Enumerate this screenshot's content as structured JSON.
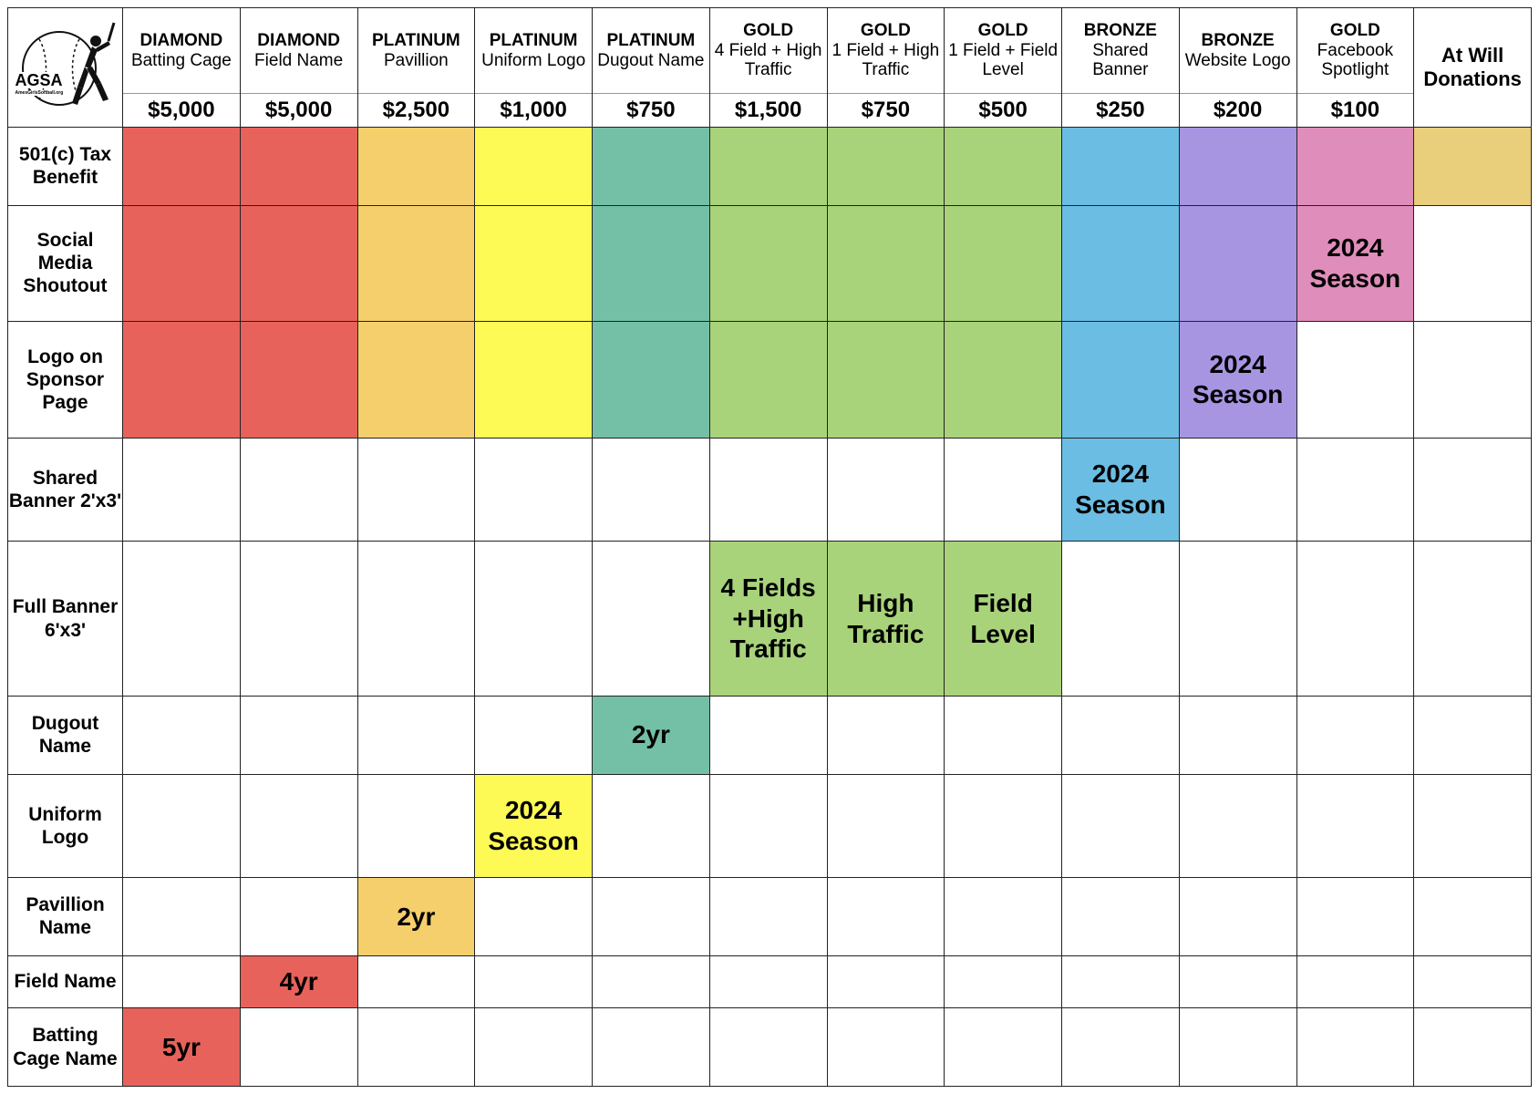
{
  "logo": {
    "text": "AGSA",
    "small_text": "AmesGirlsSoftball.org"
  },
  "columns": [
    {
      "tier": "DIAMOND",
      "name": "Batting Cage",
      "price": "$5,000",
      "color": "#e8625c"
    },
    {
      "tier": "DIAMOND",
      "name": "Field Name",
      "price": "$5,000",
      "color": "#e8625c"
    },
    {
      "tier": "PLATINUM",
      "name": "Pavillion",
      "price": "$2,500",
      "color": "#f5cf6b"
    },
    {
      "tier": "PLATINUM",
      "name": "Uniform Logo",
      "price": "$1,000",
      "color": "#fdf955"
    },
    {
      "tier": "PLATINUM",
      "name": "Dugout Name",
      "price": "$750",
      "color": "#74c0a7"
    },
    {
      "tier": "GOLD",
      "name": "4 Field + High Traffic",
      "price": "$1,500",
      "color": "#a8d37a"
    },
    {
      "tier": "GOLD",
      "name": "1 Field + High Traffic",
      "price": "$750",
      "color": "#a8d37a"
    },
    {
      "tier": "GOLD",
      "name": "1 Field + Field Level",
      "price": "$500",
      "color": "#a8d37a"
    },
    {
      "tier": "BRONZE",
      "name": "Shared Banner",
      "price": "$250",
      "color": "#6cbde3"
    },
    {
      "tier": "BRONZE",
      "name": "Website Logo",
      "price": "$200",
      "color": "#a895e2"
    },
    {
      "tier": "GOLD",
      "name": "Facebook Spotlight",
      "price": "$100",
      "color": "#df8dba"
    },
    {
      "tier": "",
      "name": "At Will Donations",
      "price": "",
      "color": "#e9ce7c",
      "simple": true
    }
  ],
  "rows": [
    {
      "label": "501(c) Tax Benefit",
      "cells": [
        {
          "fill": true
        },
        {
          "fill": true
        },
        {
          "fill": true
        },
        {
          "fill": true
        },
        {
          "fill": true
        },
        {
          "fill": true
        },
        {
          "fill": true
        },
        {
          "fill": true
        },
        {
          "fill": true
        },
        {
          "fill": true
        },
        {
          "fill": true
        },
        {
          "fill": true
        }
      ]
    },
    {
      "label": "Social Media Shoutout",
      "cells": [
        {
          "fill": true
        },
        {
          "fill": true
        },
        {
          "fill": true
        },
        {
          "fill": true
        },
        {
          "fill": true
        },
        {
          "fill": true
        },
        {
          "fill": true
        },
        {
          "fill": true
        },
        {
          "fill": true
        },
        {
          "fill": true
        },
        {
          "fill": true,
          "text": "2024 Season"
        },
        {
          "fill": false
        }
      ]
    },
    {
      "label": "Logo on Sponsor Page",
      "cells": [
        {
          "fill": true
        },
        {
          "fill": true
        },
        {
          "fill": true
        },
        {
          "fill": true
        },
        {
          "fill": true
        },
        {
          "fill": true
        },
        {
          "fill": true
        },
        {
          "fill": true
        },
        {
          "fill": true
        },
        {
          "fill": true,
          "text": "2024 Season"
        },
        {
          "fill": false
        },
        {
          "fill": false
        }
      ]
    },
    {
      "label": "Shared Banner 2'x3'",
      "cells": [
        {
          "fill": false
        },
        {
          "fill": false
        },
        {
          "fill": false
        },
        {
          "fill": false
        },
        {
          "fill": false
        },
        {
          "fill": false
        },
        {
          "fill": false
        },
        {
          "fill": false
        },
        {
          "fill": true,
          "text": "2024 Season"
        },
        {
          "fill": false
        },
        {
          "fill": false
        },
        {
          "fill": false
        }
      ]
    },
    {
      "label": "Full Banner 6'x3'",
      "cells": [
        {
          "fill": false
        },
        {
          "fill": false
        },
        {
          "fill": false
        },
        {
          "fill": false
        },
        {
          "fill": false
        },
        {
          "fill": true,
          "text": "4 Fields +High Traffic"
        },
        {
          "fill": true,
          "text": "High Traffic"
        },
        {
          "fill": true,
          "text": "Field Level"
        },
        {
          "fill": false
        },
        {
          "fill": false
        },
        {
          "fill": false
        },
        {
          "fill": false
        }
      ]
    },
    {
      "label": "Dugout Name",
      "cells": [
        {
          "fill": false
        },
        {
          "fill": false
        },
        {
          "fill": false
        },
        {
          "fill": false
        },
        {
          "fill": true,
          "text": "2yr"
        },
        {
          "fill": false
        },
        {
          "fill": false
        },
        {
          "fill": false
        },
        {
          "fill": false
        },
        {
          "fill": false
        },
        {
          "fill": false
        },
        {
          "fill": false
        }
      ]
    },
    {
      "label": "Uniform Logo",
      "cells": [
        {
          "fill": false
        },
        {
          "fill": false
        },
        {
          "fill": false
        },
        {
          "fill": true,
          "text": "2024 Season"
        },
        {
          "fill": false
        },
        {
          "fill": false
        },
        {
          "fill": false
        },
        {
          "fill": false
        },
        {
          "fill": false
        },
        {
          "fill": false
        },
        {
          "fill": false
        },
        {
          "fill": false
        }
      ]
    },
    {
      "label": "Pavillion Name",
      "cells": [
        {
          "fill": false
        },
        {
          "fill": false
        },
        {
          "fill": true,
          "text": "2yr"
        },
        {
          "fill": false
        },
        {
          "fill": false
        },
        {
          "fill": false
        },
        {
          "fill": false
        },
        {
          "fill": false
        },
        {
          "fill": false
        },
        {
          "fill": false
        },
        {
          "fill": false
        },
        {
          "fill": false
        }
      ]
    },
    {
      "label": "Field Name",
      "cells": [
        {
          "fill": false
        },
        {
          "fill": true,
          "text": "4yr"
        },
        {
          "fill": false
        },
        {
          "fill": false
        },
        {
          "fill": false
        },
        {
          "fill": false
        },
        {
          "fill": false
        },
        {
          "fill": false
        },
        {
          "fill": false
        },
        {
          "fill": false
        },
        {
          "fill": false
        },
        {
          "fill": false
        }
      ]
    },
    {
      "label": "Batting Cage Name",
      "cells": [
        {
          "fill": true,
          "text": "5yr"
        },
        {
          "fill": false
        },
        {
          "fill": false
        },
        {
          "fill": false
        },
        {
          "fill": false
        },
        {
          "fill": false
        },
        {
          "fill": false
        },
        {
          "fill": false
        },
        {
          "fill": false
        },
        {
          "fill": false
        },
        {
          "fill": false
        },
        {
          "fill": false
        }
      ]
    }
  ]
}
